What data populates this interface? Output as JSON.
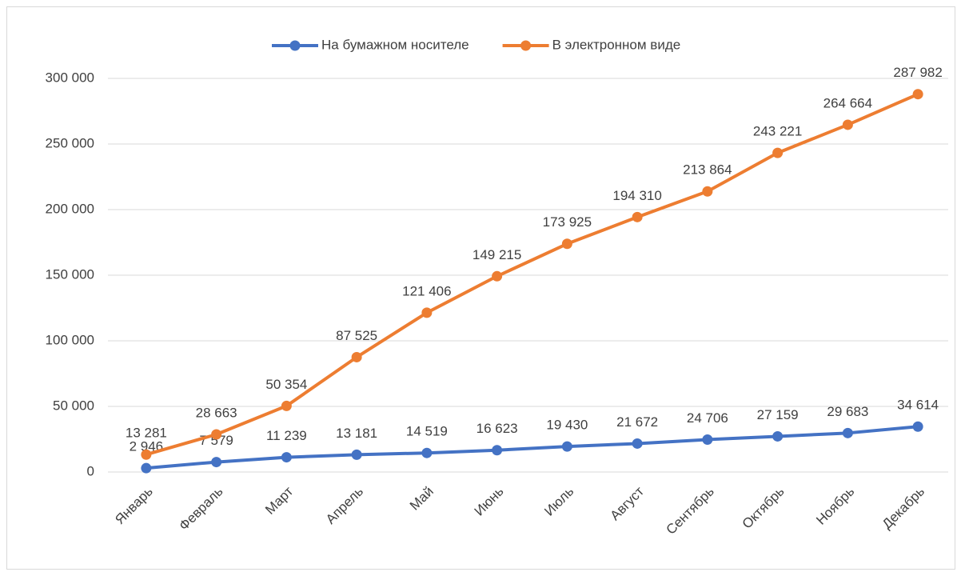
{
  "chart_data": {
    "type": "line",
    "categories": [
      "Январь",
      "Февраль",
      "Март",
      "Апрель",
      "Май",
      "Июнь",
      "Июль",
      "Август",
      "Сентябрь",
      "Октябрь",
      "Ноябрь",
      "Декабрь"
    ],
    "series": [
      {
        "name": "На бумажном носителе",
        "color": "#4472c4",
        "values": [
          2946,
          7579,
          11239,
          13181,
          14519,
          16623,
          19430,
          21672,
          24706,
          27159,
          29683,
          34614
        ],
        "value_labels": [
          "2 946",
          "7 579",
          "11 239",
          "13 181",
          "14 519",
          "16 623",
          "19 430",
          "21 672",
          "24 706",
          "27 159",
          "29 683",
          "34 614"
        ]
      },
      {
        "name": "В электронном виде",
        "color": "#ed7d31",
        "values": [
          13281,
          28663,
          50354,
          87525,
          121406,
          149215,
          173925,
          194310,
          213864,
          243221,
          264664,
          287982
        ],
        "value_labels": [
          "13 281",
          "28 663",
          "50 354",
          "87 525",
          "121 406",
          "149 215",
          "173 925",
          "194 310",
          "213 864",
          "243 221",
          "264 664",
          "287 982"
        ]
      }
    ],
    "ylim": [
      0,
      300000
    ],
    "yticks": [
      0,
      {
        "value": 50000,
        "label": "50 000"
      },
      {
        "value": 100000,
        "label": "100 000"
      },
      {
        "value": 150000,
        "label": "150 000"
      },
      {
        "value": 200000,
        "label": "200 000"
      },
      {
        "value": 250000,
        "label": "250 000"
      },
      {
        "value": 300000,
        "label": "300 000"
      }
    ],
    "grid": true,
    "legend": "top"
  }
}
